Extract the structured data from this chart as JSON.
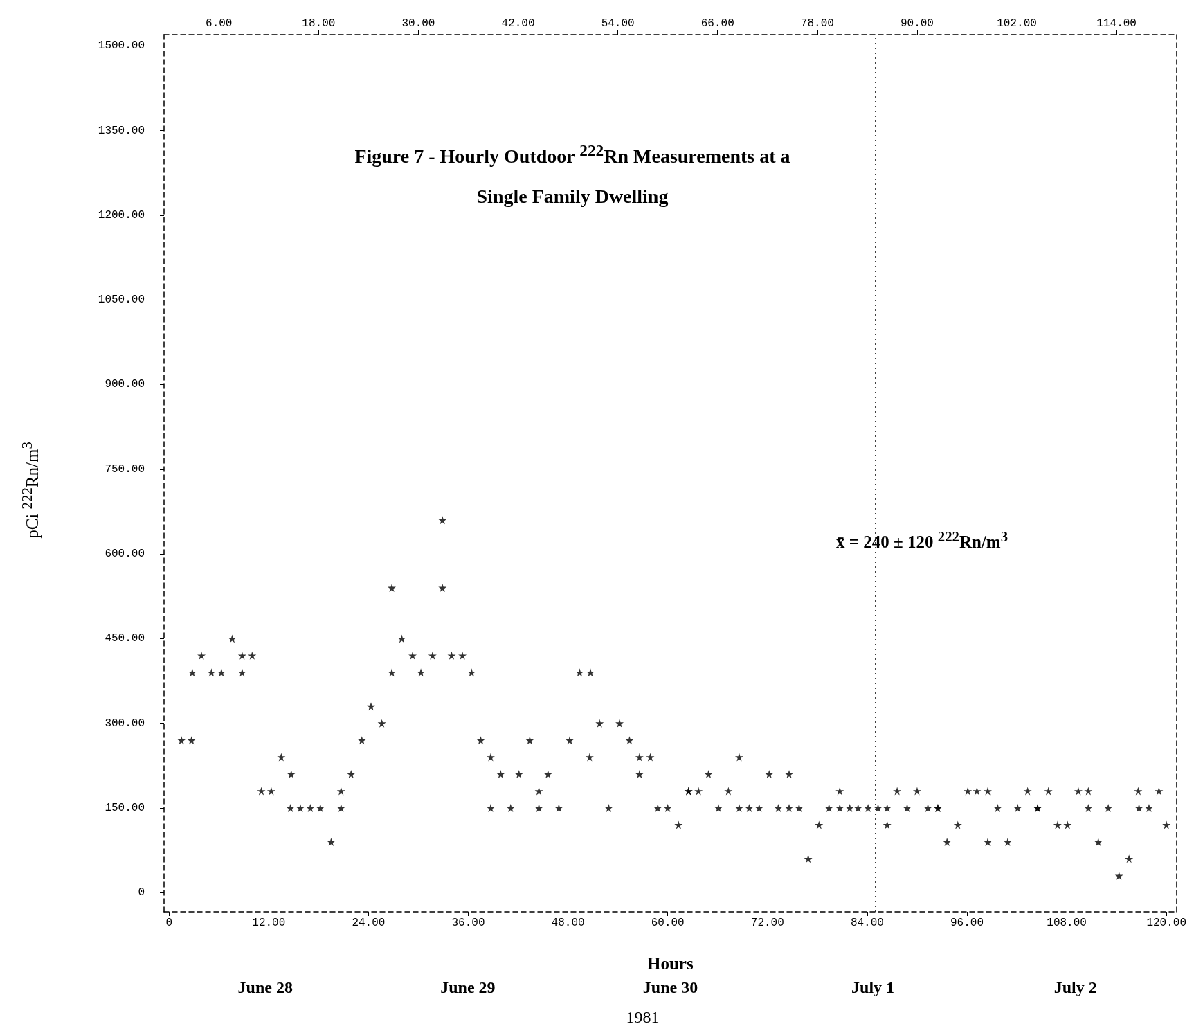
{
  "chart_data": {
    "type": "scatter",
    "title": "Figure 7 - Hourly Outdoor $^{222}$Rn Measurements at a Single Family Dwelling",
    "xlabel": "Hours",
    "ylabel": "pCi $^{222}$Rn/m$^{3}$",
    "annotations": [
      "x̄ = 240 ± 120 $^{222}$Rn/m$^{3}$",
      "June 28",
      "June 29",
      "June 30",
      "July 1",
      "July 2",
      "1981"
    ],
    "x": [
      1.5,
      2.7,
      2.8,
      3.9,
      5.1,
      6.3,
      7.6,
      8.8,
      8.8,
      10.0,
      11.1,
      12.3,
      13.5,
      14.6,
      14.7,
      15.8,
      17.0,
      18.2,
      19.5,
      20.7,
      20.7,
      21.9,
      23.2,
      24.3,
      25.6,
      26.8,
      26.8,
      28.0,
      29.3,
      30.3,
      31.7,
      32.9,
      32.9,
      34.0,
      35.3,
      36.4,
      37.5,
      38.7,
      38.7,
      39.9,
      41.1,
      42.1,
      43.4,
      44.5,
      44.5,
      45.6,
      46.9,
      48.2,
      49.4,
      50.6,
      50.7,
      51.8,
      52.9,
      54.2,
      55.4,
      56.6,
      56.6,
      57.9,
      58.8,
      60.0,
      61.3,
      62.5,
      62.5,
      63.7,
      64.9,
      66.1,
      67.3,
      68.6,
      68.6,
      69.8,
      71.0,
      72.2,
      73.3,
      74.6,
      74.6,
      75.8,
      76.9,
      78.2,
      79.4,
      80.7,
      80.7,
      81.9,
      82.9,
      84.1,
      85.3,
      86.4,
      86.4,
      87.6,
      88.8,
      90.0,
      91.3,
      92.5,
      92.5,
      93.6,
      94.9,
      96.1,
      97.2,
      98.5,
      98.5,
      99.7,
      100.9,
      102.1,
      103.3,
      104.5,
      104.5,
      105.8,
      106.9,
      108.1,
      109.4,
      110.6,
      110.6,
      111.8,
      113.0,
      114.3,
      115.5,
      116.6,
      116.7,
      117.9,
      119.1,
      120.0
    ],
    "values": [
      270,
      270,
      390,
      420,
      390,
      390,
      450,
      420,
      390,
      420,
      180,
      180,
      240,
      150,
      210,
      150,
      150,
      150,
      90,
      180,
      150,
      210,
      270,
      330,
      300,
      540,
      390,
      450,
      420,
      390,
      420,
      660,
      540,
      420,
      420,
      390,
      270,
      240,
      150,
      210,
      150,
      210,
      270,
      180,
      150,
      210,
      150,
      270,
      390,
      240,
      390,
      300,
      150,
      300,
      270,
      240,
      210,
      240,
      150,
      150,
      120,
      180,
      180,
      180,
      210,
      150,
      180,
      240,
      150,
      150,
      150,
      210,
      150,
      210,
      150,
      150,
      60,
      120,
      150,
      180,
      150,
      150,
      150,
      150,
      150,
      150,
      120,
      180,
      150,
      180,
      150,
      150,
      150,
      90,
      120,
      180,
      180,
      180,
      90,
      150,
      90,
      150,
      180,
      150,
      150,
      180,
      120,
      120,
      180,
      180,
      150,
      90,
      150,
      30,
      60,
      180,
      150,
      150,
      180,
      120
    ],
    "color": "#000000",
    "marker": "star",
    "xlim": [
      -0.6,
      121.2
    ],
    "xticks": [
      {
        "value": 0,
        "label": "0"
      },
      {
        "value": 12,
        "label": "12.00"
      },
      {
        "value": 24,
        "label": "24.00"
      },
      {
        "value": 36,
        "label": "36.00"
      },
      {
        "value": 48,
        "label": "48.00"
      },
      {
        "value": 60,
        "label": "60.00"
      },
      {
        "value": 72,
        "label": "72.00"
      },
      {
        "value": 84,
        "label": "84.00"
      },
      {
        "value": 96,
        "label": "96.00"
      },
      {
        "value": 108,
        "label": "108.00"
      },
      {
        "value": 120,
        "label": "120.00"
      }
    ],
    "x2lim": [
      -0.6,
      121.2
    ],
    "x2ticks": [
      {
        "value": 6,
        "label": "6.00"
      },
      {
        "value": 18,
        "label": "18.00"
      },
      {
        "value": 30,
        "label": "30.00"
      },
      {
        "value": 42,
        "label": "42.00"
      },
      {
        "value": 54,
        "label": "54.00"
      },
      {
        "value": 66,
        "label": "66.00"
      },
      {
        "value": 78,
        "label": "78.00"
      },
      {
        "value": 90,
        "label": "90.00"
      },
      {
        "value": 102,
        "label": "102.00"
      },
      {
        "value": 114,
        "label": "114.00"
      }
    ],
    "ylim": [
      -34,
      1520
    ],
    "yticks": [
      {
        "value": 0,
        "label": "0"
      },
      {
        "value": 150,
        "label": "150.00"
      },
      {
        "value": 300,
        "label": "300.00"
      },
      {
        "value": 450,
        "label": "450.00"
      },
      {
        "value": 600,
        "label": "600.00"
      },
      {
        "value": 750,
        "label": "750.00"
      },
      {
        "value": 900,
        "label": "900.00"
      },
      {
        "value": 1050,
        "label": "1050.00"
      },
      {
        "value": 1200,
        "label": "1200.00"
      },
      {
        "value": 1350,
        "label": "1350.00"
      },
      {
        "value": 1500,
        "label": "1500.00"
      }
    ],
    "ref_lines": [
      {
        "axis": "x",
        "value": 85,
        "line_style": "dotted",
        "color": "#000000"
      }
    ],
    "grid": false
  }
}
